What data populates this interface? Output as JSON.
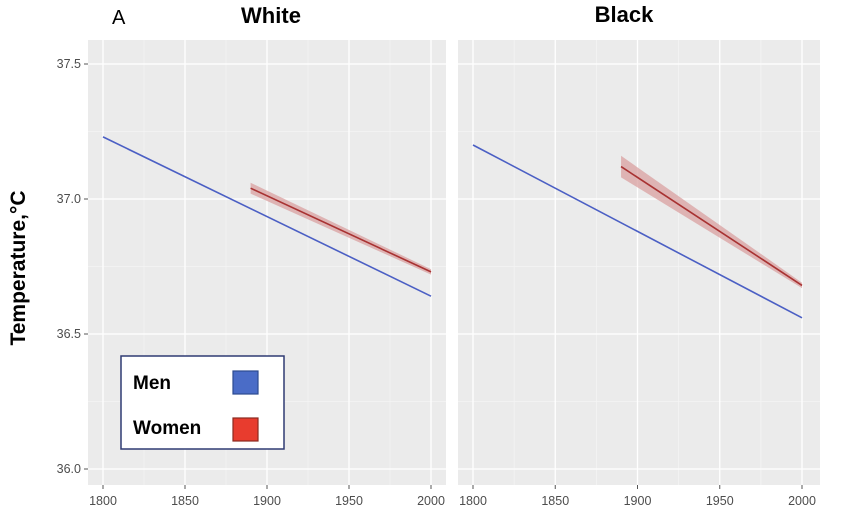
{
  "figure_label": "A",
  "ylabel": "Temperature,°C",
  "legend": {
    "placement": "bottom-left",
    "items": [
      {
        "label": "Men",
        "color": "#4a6cc7",
        "border": "#2c4a8f"
      },
      {
        "label": "Women",
        "color": "#e83c2e",
        "border": "#8a2a20"
      }
    ]
  },
  "colors": {
    "men_line": "#4b5fc4",
    "women_line": "#a83232",
    "women_band": "#d9a0a0"
  },
  "chart_data": [
    {
      "type": "line",
      "title": "White",
      "xlabel": "",
      "ylabel": "Temperature,°C",
      "xlim": [
        1795,
        2005
      ],
      "ylim": [
        35.97,
        37.55
      ],
      "xticks": [
        1800,
        1850,
        1900,
        1950,
        2000
      ],
      "yticks": [
        36.0,
        36.5,
        37.0,
        37.5
      ],
      "grid": true,
      "series": [
        {
          "name": "Men",
          "x": [
            1800,
            2000
          ],
          "y": [
            37.23,
            36.64
          ]
        },
        {
          "name": "Women",
          "x": [
            1890,
            2000
          ],
          "y": [
            37.04,
            36.73
          ],
          "ci_low": [
            37.02,
            36.72
          ],
          "ci_high": [
            37.06,
            36.74
          ]
        }
      ]
    },
    {
      "type": "line",
      "title": "Black",
      "xlabel": "",
      "ylabel": "",
      "xlim": [
        1795,
        2005
      ],
      "ylim": [
        35.97,
        37.55
      ],
      "xticks": [
        1800,
        1850,
        1900,
        1950,
        2000
      ],
      "yticks": [
        36.0,
        36.5,
        37.0,
        37.5
      ],
      "grid": true,
      "series": [
        {
          "name": "Men",
          "x": [
            1800,
            2000
          ],
          "y": [
            37.2,
            36.56
          ]
        },
        {
          "name": "Women",
          "x": [
            1890,
            2000
          ],
          "y": [
            37.12,
            36.68
          ],
          "ci_low": [
            37.08,
            36.67
          ],
          "ci_high": [
            37.16,
            36.69
          ]
        }
      ]
    }
  ]
}
